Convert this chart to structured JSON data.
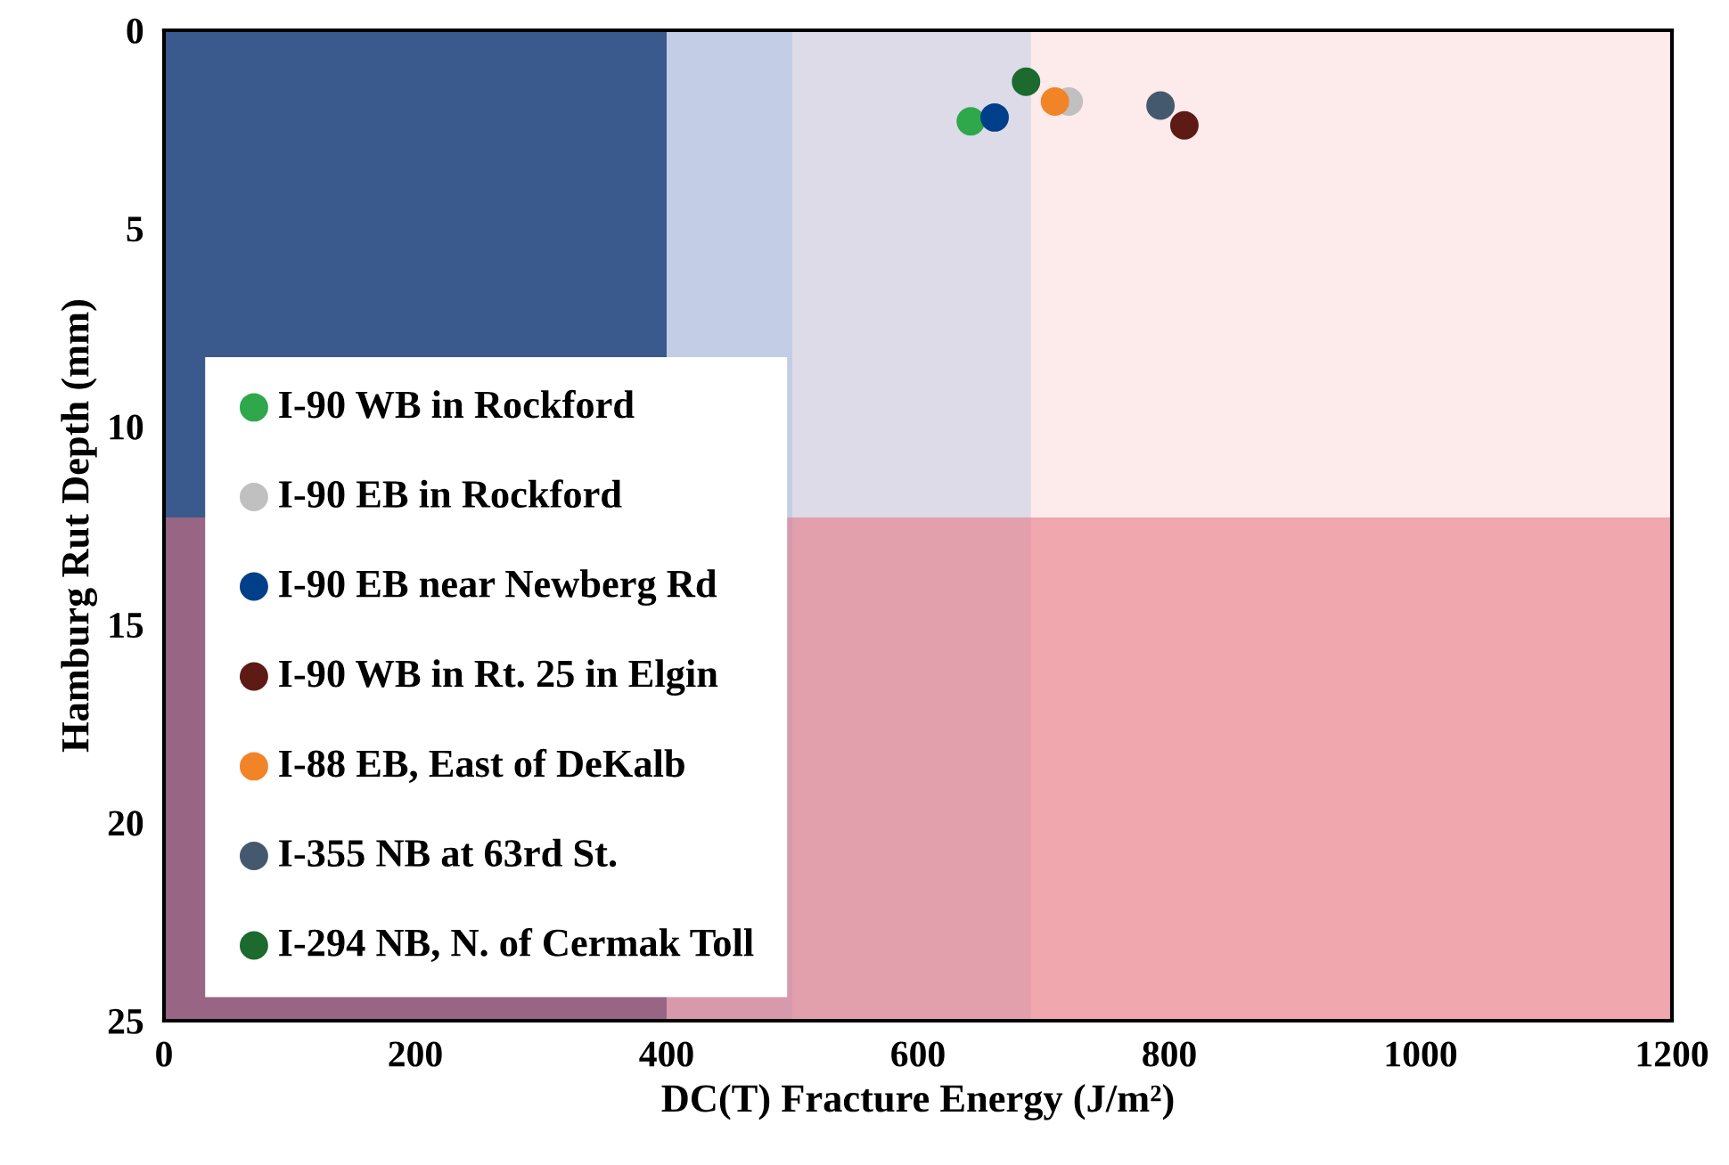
{
  "chart_data": {
    "type": "scatter",
    "xlabel": "DC(T) Fracture Energy (J/m²)",
    "ylabel": "Hamburg Rut Depth (mm)",
    "xlim": [
      0,
      1200
    ],
    "xticks": [
      0,
      200,
      400,
      600,
      800,
      1000,
      1200
    ],
    "ylim": [
      25,
      0
    ],
    "yticks": [
      0,
      5,
      10,
      15,
      20,
      25
    ],
    "grid": false,
    "legend": "bottom left",
    "marker": "circle",
    "bands": [
      {
        "axis": "x",
        "from": 0,
        "to": 400,
        "color": "#3a5a8e"
      },
      {
        "axis": "x",
        "from": 400,
        "to": 500,
        "color": "#c3cde6"
      },
      {
        "axis": "x",
        "from": 500,
        "to": 690,
        "color": "#dcdbe7"
      },
      {
        "axis": "x",
        "from": 690,
        "to": 1200,
        "color": "#fdeaea"
      },
      {
        "axis": "y",
        "from": 12.3,
        "to": 25,
        "color": "#e8707c"
      }
    ],
    "series": [
      {
        "name": "I-90 WB in Rockford",
        "color": "#2ea84a",
        "x": [
          642
        ],
        "values": [
          2.3
        ]
      },
      {
        "name": "I-90 EB in Rockford",
        "color": "#c0c0c0",
        "x": [
          720
        ],
        "values": [
          1.8
        ]
      },
      {
        "name": "I-90 EB near Newberg Rd",
        "color": "#003f8a",
        "x": [
          661
        ],
        "values": [
          2.2
        ]
      },
      {
        "name": "I-90 WB in Rt. 25 in Elgin",
        "color": "#5e1a14",
        "x": [
          812
        ],
        "values": [
          2.4
        ]
      },
      {
        "name": "I-88 EB, East of DeKalb",
        "color": "#f28428",
        "x": [
          709
        ],
        "values": [
          1.8
        ]
      },
      {
        "name": "I-355 NB at 63rd St.",
        "color": "#45596e",
        "x": [
          793
        ],
        "values": [
          1.9
        ]
      },
      {
        "name": "I-294 NB, N. of Cermak Toll",
        "color": "#1c6a2e",
        "x": [
          686
        ],
        "values": [
          1.3
        ]
      }
    ]
  }
}
